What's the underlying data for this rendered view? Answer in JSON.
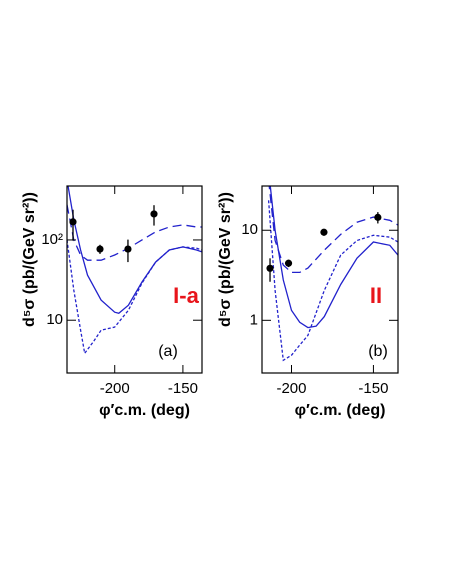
{
  "chart_data": [
    {
      "type": "line",
      "log_y": true,
      "y_label": "d⁵σ (pb/(GeV sr²))",
      "x_label": "φ′c.m. (deg)",
      "annotations": [
        "I-a",
        "(a)"
      ],
      "annotation_colors": [
        "#e8151b",
        "#000000"
      ],
      "xlim": [
        -235,
        -136
      ],
      "xticks": [
        -200,
        -150
      ],
      "ylim": [
        2.2,
        470
      ],
      "yticks": [
        10,
        {
          "value": 100,
          "label": "10²"
        }
      ],
      "series": [
        {
          "color": "#2222cc",
          "dash": "dashed",
          "x": [
            -235,
            -230,
            -225,
            -220,
            -210,
            -200,
            -190,
            -180,
            -170,
            -160,
            -150,
            -140,
            -136
          ],
          "values": [
            274,
            100,
            65,
            56,
            56,
            65,
            79,
            100,
            126,
            145,
            154,
            145,
            145
          ]
        },
        {
          "color": "#2222cc",
          "dash": "solid",
          "x": [
            -235,
            -230,
            -225,
            -220,
            -210,
            -200,
            -197,
            -190,
            -180,
            -170,
            -160,
            -150,
            -140,
            -136
          ],
          "values": [
            562,
            178,
            75,
            36.5,
            17.8,
            12.6,
            12.2,
            15.4,
            29.9,
            53,
            75,
            82,
            75,
            71
          ]
        },
        {
          "color": "#2222cc",
          "dash": "dotted",
          "x": [
            -235,
            -230,
            -225,
            -222,
            -215,
            -210,
            -200,
            -190,
            -180,
            -170,
            -160,
            -150,
            -140,
            -136
          ],
          "values": [
            100,
            23.7,
            7.5,
            3.87,
            5.6,
            7.5,
            8.2,
            13.3,
            29,
            53,
            75,
            82,
            79,
            75
          ]
        },
        {
          "color": "#000000",
          "dash": "points",
          "x": [
            -230.6,
            -210.8,
            -190.3,
            -171.2
          ],
          "values": [
            168,
            77,
            77,
            211
          ],
          "errors": [
            70,
            10,
            24,
            60
          ]
        }
      ]
    },
    {
      "type": "line",
      "log_y": true,
      "y_label": "d⁵σ (pb/(GeV sr²))",
      "x_label": "φ′c.m. (deg)",
      "annotations": [
        "II",
        "(b)"
      ],
      "annotation_colors": [
        "#e8151b",
        "#000000"
      ],
      "xlim": [
        -218,
        -135
      ],
      "xticks": [
        -200,
        -150
      ],
      "ylim": [
        0.26,
        31
      ],
      "yticks": [
        1,
        10
      ],
      "series": [
        {
          "color": "#2222cc",
          "dash": "dashed",
          "x": [
            -214,
            -210,
            -205,
            -200,
            -195,
            -190,
            -180,
            -170,
            -160,
            -150,
            -140,
            -135
          ],
          "values": [
            35.9,
            7.7,
            4.1,
            3.4,
            3.4,
            3.8,
            6.0,
            9.0,
            12.3,
            14.0,
            12.9,
            11.4
          ]
        },
        {
          "color": "#2222cc",
          "dash": "solid",
          "x": [
            -214,
            -210,
            -205,
            -200,
            -195,
            -190,
            -185,
            -180,
            -170,
            -160,
            -150,
            -140,
            -135
          ],
          "values": [
            46,
            10,
            2.8,
            1.29,
            0.95,
            0.83,
            0.86,
            1.1,
            2.5,
            4.9,
            7.4,
            6.8,
            5.3
          ]
        },
        {
          "color": "#2222cc",
          "dash": "dotted",
          "x": [
            -214,
            -210,
            -205,
            -200,
            -195,
            -190,
            -180,
            -170,
            -160,
            -150,
            -140,
            -135
          ],
          "values": [
            21.5,
            2.15,
            0.36,
            0.41,
            0.53,
            0.68,
            2.15,
            5.3,
            7.7,
            8.8,
            8.4,
            7.4
          ]
        },
        {
          "color": "#000000",
          "dash": "points",
          "x": [
            -213.1,
            -201.8,
            -180.2,
            -147.3
          ],
          "values": [
            3.78,
            4.3,
            9.5,
            13.9
          ],
          "errors": [
            1.1,
            0.4,
            0.8,
            2
          ]
        }
      ]
    }
  ]
}
